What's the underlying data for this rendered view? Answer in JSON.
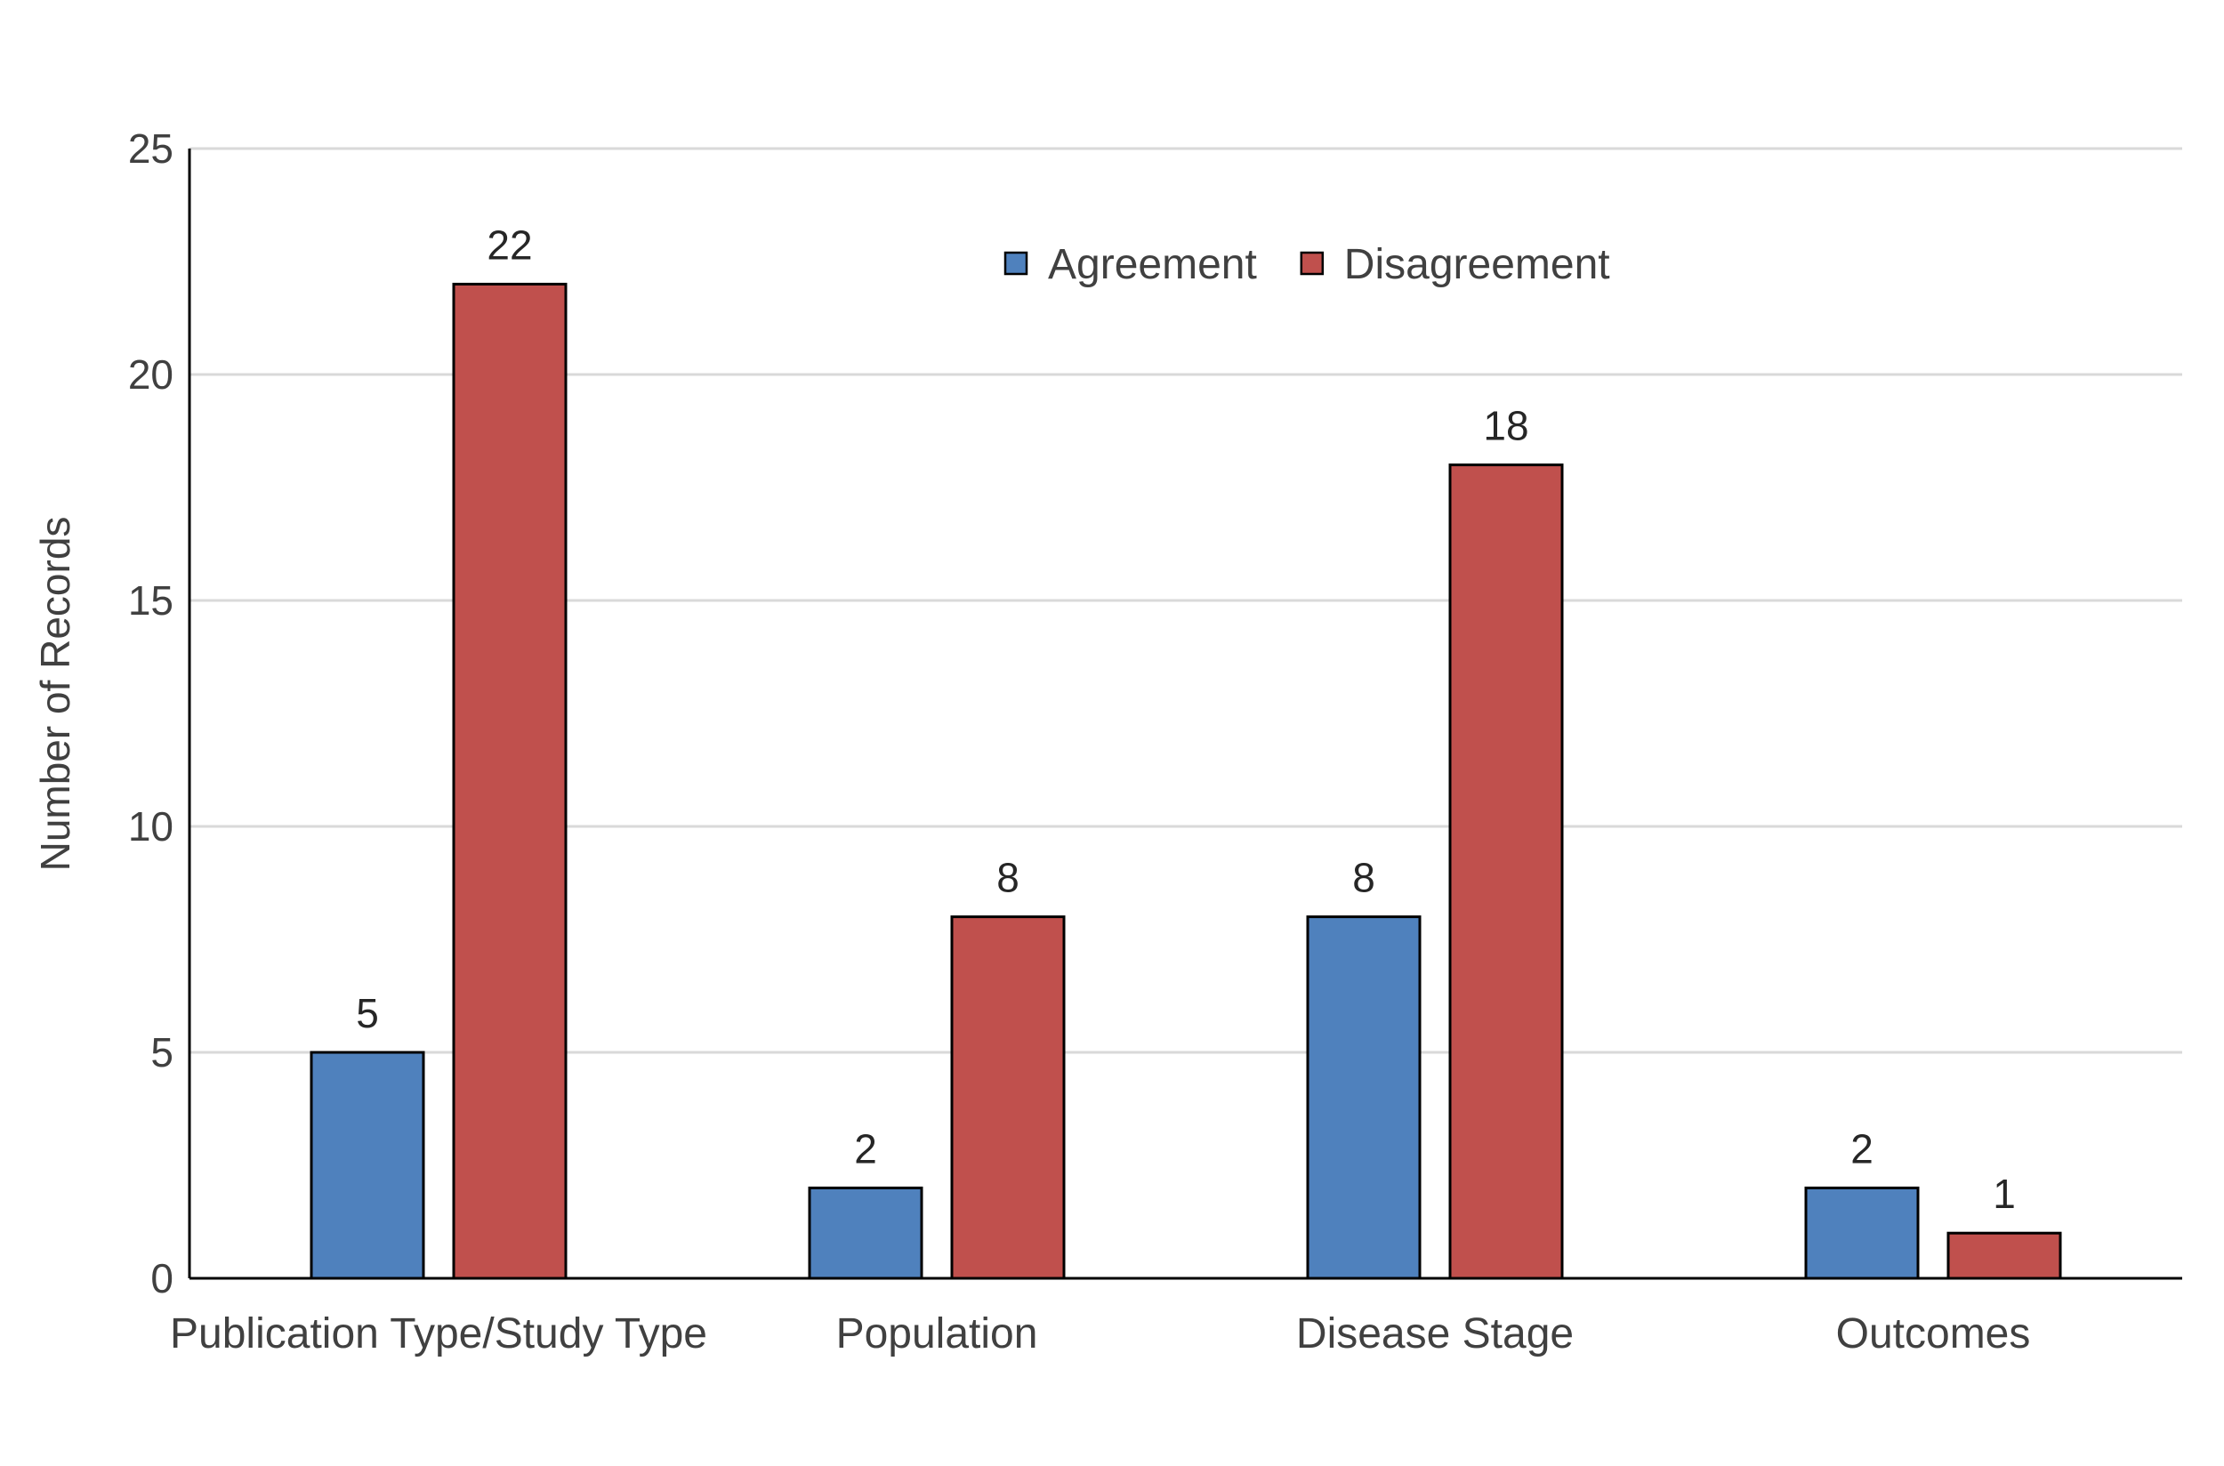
{
  "chart_data": {
    "type": "bar",
    "title": "",
    "xlabel": "",
    "ylabel": "Number of Records",
    "ylim": [
      0,
      25
    ],
    "yticks": [
      0,
      5,
      10,
      15,
      20,
      25
    ],
    "grid": true,
    "legend_position": "top-center",
    "categories": [
      "Publication Type/Study Type",
      "Population",
      "Disease Stage",
      "Outcomes"
    ],
    "series": [
      {
        "name": "Agreement",
        "color": "#4F81BD",
        "values": [
          5,
          2,
          8,
          2
        ]
      },
      {
        "name": "Disagreement",
        "color": "#C0504D",
        "values": [
          22,
          8,
          18,
          1
        ]
      }
    ]
  }
}
